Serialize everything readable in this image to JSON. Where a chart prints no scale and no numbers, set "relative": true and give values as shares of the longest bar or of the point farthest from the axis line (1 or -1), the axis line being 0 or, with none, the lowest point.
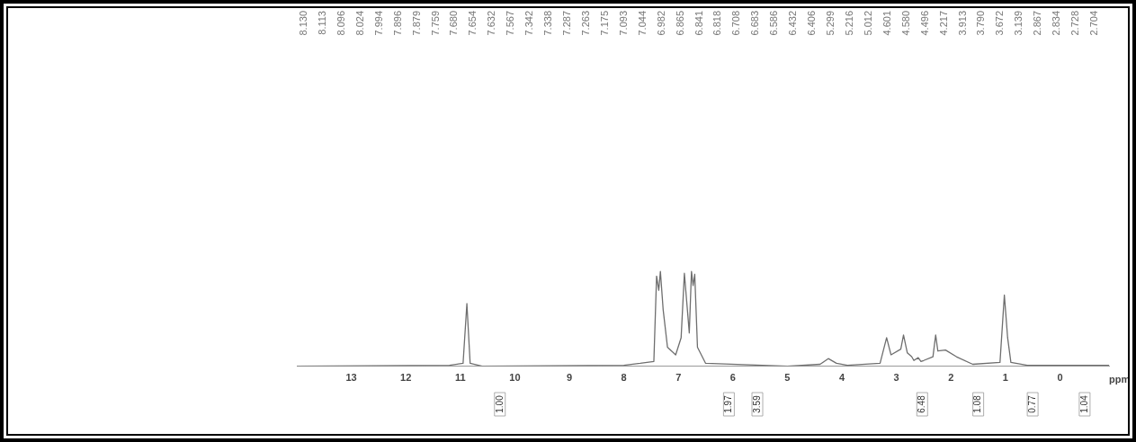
{
  "chart_data": {
    "type": "line",
    "relative": true,
    "xlabel": "ppm",
    "xlim": [
      14,
      -0.9
    ],
    "xticks": [
      13,
      12,
      11,
      10,
      9,
      8,
      7,
      6,
      5,
      4,
      3,
      2,
      1,
      0
    ],
    "grid": false,
    "legend": false,
    "marker": "none",
    "line_style": "solid",
    "series": [
      {
        "color": "#6e6e6e",
        "x": [
          14,
          11.2,
          10.95,
          10.88,
          10.82,
          10.6,
          8.0,
          7.7,
          7.45,
          7.4,
          7.36,
          7.33,
          7.28,
          7.2,
          7.05,
          6.95,
          6.89,
          6.85,
          6.8,
          6.76,
          6.73,
          6.7,
          6.65,
          6.5,
          5.0,
          4.4,
          4.25,
          4.1,
          3.9,
          3.3,
          3.18,
          3.1,
          2.92,
          2.87,
          2.8,
          2.72,
          2.68,
          2.6,
          2.55,
          2.5,
          2.33,
          2.28,
          2.24,
          2.1,
          1.9,
          1.6,
          1.1,
          1.02,
          0.96,
          0.9,
          0.6,
          -0.9
        ],
        "values": [
          0,
          0.01,
          0.03,
          0.66,
          0.03,
          0,
          0.01,
          0.03,
          0.05,
          0.95,
          0.8,
          1,
          0.6,
          0.2,
          0.12,
          0.3,
          0.98,
          0.7,
          0.35,
          1,
          0.85,
          0.97,
          0.2,
          0.03,
          0,
          0.02,
          0.08,
          0.03,
          0.01,
          0.03,
          0.3,
          0.12,
          0.18,
          0.33,
          0.14,
          0.1,
          0.06,
          0.09,
          0.05,
          0.06,
          0.1,
          0.33,
          0.16,
          0.17,
          0.1,
          0.02,
          0.04,
          0.75,
          0.3,
          0.04,
          0.01,
          0.01
        ]
      }
    ],
    "annotations": [
      "8.130",
      "8.113",
      "8.096",
      "8.024",
      "7.994",
      "7.896",
      "7.879",
      "7.759",
      "7.680",
      "7.654",
      "7.632",
      "7.567",
      "7.342",
      "7.338",
      "7.287",
      "7.263",
      "7.175",
      "7.093",
      "7.044",
      "6.982",
      "6.865",
      "6.841",
      "6.818",
      "6.708",
      "6.683",
      "6.586",
      "6.432",
      "6.406",
      "5.299",
      "5.216",
      "5.012",
      "4.601",
      "4.580",
      "4.496",
      "4.217",
      "3.913",
      "3.790",
      "3.672",
      "3.139",
      "2.867",
      "2.834",
      "2.728",
      "2.704",
      "1.00",
      "1.97",
      "3.59",
      "6.48",
      "1.08",
      "0.77",
      "1.04"
    ]
  }
}
